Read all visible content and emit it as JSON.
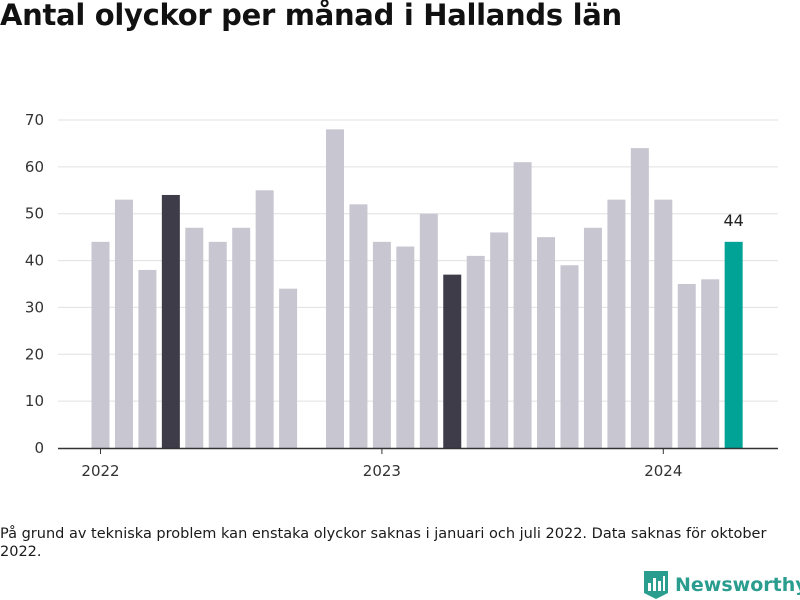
{
  "title": "Antal olyckor per månad i Hallands län",
  "footnote": "På grund av tekniska problem kan enstaka olyckor saknas i januari och juli 2022. Data saknas för oktober 2022.",
  "brand": {
    "name": "Newsworthy",
    "logo_icon": "bar-chart-logo-icon",
    "color": "#2a9d8f"
  },
  "colors": {
    "default": "#c8c6d0",
    "highlight": "#3d3c48",
    "latest": "#00a396",
    "gridline": "#e0e0e0",
    "axis": "#333333"
  },
  "chart_data": {
    "type": "bar",
    "title": "Antal olyckor per månad i Hallands län",
    "xlabel": "",
    "ylabel": "",
    "ylim": [
      0,
      70
    ],
    "yticks": [
      0,
      10,
      20,
      30,
      40,
      50,
      60,
      70
    ],
    "grid": true,
    "xtick_labels": [
      {
        "label": "2022",
        "month": "2022-01"
      },
      {
        "label": "2023",
        "month": "2023-01"
      },
      {
        "label": "2024",
        "month": "2024-01"
      }
    ],
    "series": [
      {
        "months": [
          "2022-01",
          "2022-02",
          "2022-03",
          "2022-04",
          "2022-05",
          "2022-06",
          "2022-07",
          "2022-08",
          "2022-09",
          "2022-10",
          "2022-11",
          "2022-12",
          "2023-01",
          "2023-02",
          "2023-03",
          "2023-04",
          "2023-05",
          "2023-06",
          "2023-07",
          "2023-08",
          "2023-09",
          "2023-10",
          "2023-11",
          "2023-12",
          "2024-01",
          "2024-02",
          "2024-03",
          "2024-04"
        ],
        "values": [
          44,
          53,
          38,
          54,
          47,
          44,
          47,
          55,
          34,
          null,
          68,
          52,
          44,
          43,
          50,
          37,
          41,
          46,
          61,
          45,
          39,
          47,
          53,
          64,
          53,
          35,
          36,
          44
        ],
        "highlight_months": [
          "2022-04",
          "2023-04"
        ],
        "latest_month": "2024-04"
      }
    ],
    "annotations": [
      {
        "month": "2024-04",
        "text": "44"
      }
    ]
  }
}
